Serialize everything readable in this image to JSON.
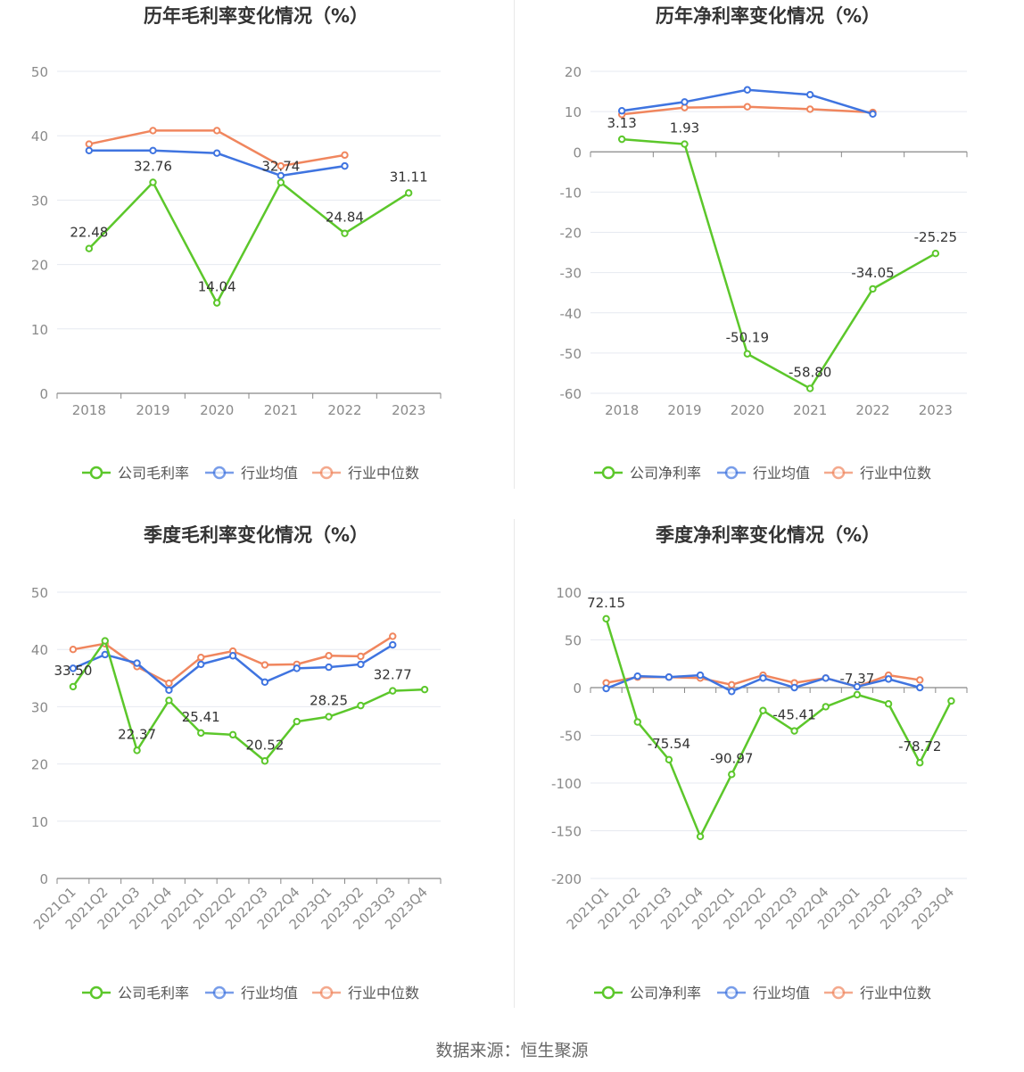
{
  "colors": {
    "company": "#5cc72b",
    "avg": "#3f74e0",
    "median": "#f0865e"
  },
  "footer": {
    "source": "数据来源：恒生聚源"
  },
  "chart_data": [
    {
      "type": "line",
      "title": "历年毛利率变化情况（%）",
      "categories": [
        "2018",
        "2019",
        "2020",
        "2021",
        "2022",
        "2023"
      ],
      "ylim": [
        0,
        50
      ],
      "yticks": [
        0,
        10,
        20,
        30,
        40,
        50
      ],
      "ytick_labels": [
        "0",
        "10",
        "20",
        "30",
        "40",
        "50"
      ],
      "series": [
        {
          "name": "公司毛利率",
          "key": "company",
          "values": [
            22.48,
            32.76,
            14.04,
            32.74,
            24.84,
            31.11
          ],
          "labels": [
            "22.48",
            "32.76",
            "14.04",
            "32.74",
            "24.84",
            "31.11"
          ]
        },
        {
          "name": "行业均值",
          "key": "avg",
          "values": [
            37.7,
            37.7,
            37.3,
            33.8,
            35.3,
            null
          ]
        },
        {
          "name": "行业中位数",
          "key": "median",
          "values": [
            38.7,
            40.8,
            40.8,
            35.3,
            37.0,
            null
          ]
        }
      ]
    },
    {
      "type": "line",
      "title": "历年净利率变化情况（%）",
      "categories": [
        "2018",
        "2019",
        "2020",
        "2021",
        "2022",
        "2023"
      ],
      "ylim": [
        -60,
        20
      ],
      "yticks": [
        -60,
        -50,
        -40,
        -30,
        -20,
        -10,
        0,
        10,
        20
      ],
      "ytick_labels": [
        "-60",
        "-50",
        "-40",
        "-30",
        "-20",
        "-10",
        "0",
        "10",
        "20"
      ],
      "series": [
        {
          "name": "公司净利率",
          "key": "company",
          "values": [
            3.13,
            1.93,
            -50.19,
            -58.8,
            -34.05,
            -25.25
          ],
          "labels": [
            "3.13",
            "1.93",
            "-50.19",
            "-58.80",
            "-34.05",
            "-25.25"
          ]
        },
        {
          "name": "行业均值",
          "key": "avg",
          "values": [
            10.2,
            12.4,
            15.4,
            14.2,
            9.4,
            null
          ]
        },
        {
          "name": "行业中位数",
          "key": "median",
          "values": [
            9.3,
            11.0,
            11.2,
            10.6,
            9.8,
            null
          ]
        }
      ]
    },
    {
      "type": "line",
      "title": "季度毛利率变化情况（%）",
      "categories": [
        "2021Q1",
        "2021Q2",
        "2021Q3",
        "2021Q4",
        "2022Q1",
        "2022Q2",
        "2022Q3",
        "2022Q4",
        "2023Q1",
        "2023Q2",
        "2023Q3",
        "2023Q4"
      ],
      "ylim": [
        0,
        50
      ],
      "yticks": [
        0,
        10,
        20,
        30,
        40,
        50
      ],
      "ytick_labels": [
        "0",
        "10",
        "20",
        "30",
        "40",
        "50"
      ],
      "series": [
        {
          "name": "公司毛利率",
          "key": "company",
          "values": [
            33.5,
            41.5,
            22.37,
            31.1,
            25.41,
            25.1,
            20.52,
            27.4,
            28.25,
            30.2,
            32.77,
            33.0
          ],
          "labels": [
            "33.50",
            "",
            "22.37",
            "",
            "25.41",
            "",
            "20.52",
            "",
            "28.25",
            "",
            "32.77",
            ""
          ]
        },
        {
          "name": "行业均值",
          "key": "avg",
          "values": [
            36.7,
            39.1,
            37.6,
            32.9,
            37.4,
            38.9,
            34.3,
            36.7,
            36.9,
            37.4,
            40.8,
            null
          ]
        },
        {
          "name": "行业中位数",
          "key": "median",
          "values": [
            40.0,
            41.0,
            37.0,
            34.1,
            38.6,
            39.7,
            37.3,
            37.4,
            38.9,
            38.8,
            42.3,
            null
          ]
        }
      ]
    },
    {
      "type": "line",
      "title": "季度净利率变化情况（%）",
      "categories": [
        "2021Q1",
        "2021Q2",
        "2021Q3",
        "2021Q4",
        "2022Q1",
        "2022Q2",
        "2022Q3",
        "2022Q4",
        "2023Q1",
        "2023Q2",
        "2023Q3",
        "2023Q4"
      ],
      "ylim": [
        -200,
        100
      ],
      "yticks": [
        -200,
        -150,
        -100,
        -50,
        0,
        50,
        100
      ],
      "ytick_labels": [
        "-200",
        "-150",
        "-100",
        "-50",
        "0",
        "50",
        "100"
      ],
      "series": [
        {
          "name": "公司净利率",
          "key": "company",
          "values": [
            72.15,
            -36.0,
            -75.54,
            -156.0,
            -90.97,
            -24.0,
            -45.41,
            -20.0,
            -7.37,
            -17.0,
            -78.72,
            -14.0
          ],
          "labels": [
            "72.15",
            "",
            "-75.54",
            "",
            "-90.97",
            "",
            "-45.41",
            "",
            "-7.37",
            "",
            "-78.72",
            ""
          ]
        },
        {
          "name": "行业均值",
          "key": "avg",
          "values": [
            -1.0,
            12.0,
            11.0,
            13.0,
            -4.0,
            10.0,
            0.0,
            10.0,
            1.0,
            9.0,
            0.0,
            null
          ]
        },
        {
          "name": "行业中位数",
          "key": "median",
          "values": [
            5.0,
            11.0,
            11.0,
            10.0,
            3.0,
            13.0,
            5.0,
            10.0,
            1.0,
            13.0,
            8.0,
            null
          ]
        }
      ]
    }
  ]
}
